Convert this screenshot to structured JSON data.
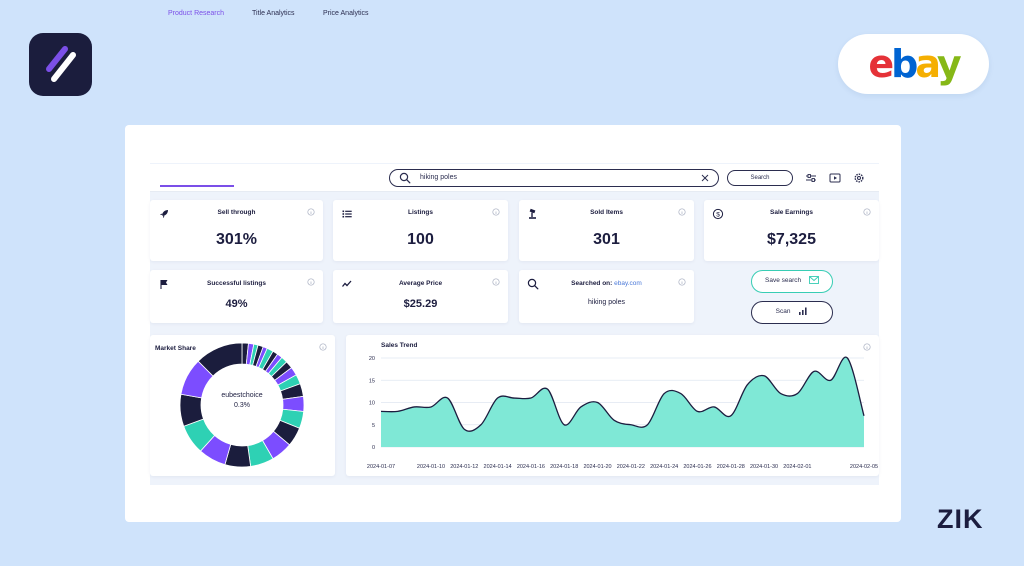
{
  "brand": {
    "marketplace_logo": "ebay",
    "company_mark": "ZIK"
  },
  "tabs": [
    {
      "label": "Product Research",
      "active": true
    },
    {
      "label": "Title Analytics",
      "active": false
    },
    {
      "label": "Price Analytics",
      "active": false
    }
  ],
  "search": {
    "value": "hiking poles",
    "button_label": "Search"
  },
  "toolbar_icons": [
    "sliders-icon",
    "play-icon",
    "gear-icon"
  ],
  "stats": {
    "sell_through": {
      "label": "Sell through",
      "value": "301%",
      "icon": "rocket-icon"
    },
    "listings": {
      "label": "Listings",
      "value": "100",
      "icon": "list-icon"
    },
    "sold_items": {
      "label": "Sold Items",
      "value": "301",
      "icon": "gavel-icon"
    },
    "sale_earnings": {
      "label": "Sale Earnings",
      "value": "$7,325",
      "icon": "dollar-coin-icon"
    },
    "successful_listings": {
      "label": "Successful listings",
      "value": "49%",
      "icon": "flag-icon"
    },
    "average_price": {
      "label": "Average Price",
      "value": "$25.29",
      "icon": "trend-line-icon"
    },
    "searched_on": {
      "label": "Searched on:",
      "site": "ebay.com",
      "value": "hiking poles",
      "icon": "search-icon"
    }
  },
  "actions": {
    "save_search": "Save search",
    "scan": "Scan"
  },
  "market_share": {
    "title": "Market Share",
    "center_name": "eubestchoice",
    "center_value": "0.3%",
    "colors": [
      "#1b1d3d",
      "#7c4dff",
      "#2ed1b4"
    ]
  },
  "sales_trend": {
    "title": "Sales Trend"
  },
  "chart_data": {
    "type": "area",
    "title": "Sales Trend",
    "ylim": [
      0,
      20
    ],
    "yticks": [
      0,
      5,
      10,
      15,
      20
    ],
    "grid": true,
    "x_tick_labels": [
      "2024-01-07",
      "2024-01-10",
      "2024-01-12",
      "2024-01-14",
      "2024-01-16",
      "2024-01-18",
      "2024-01-20",
      "2024-01-22",
      "2024-01-24",
      "2024-01-26",
      "2024-01-28",
      "2024-01-30",
      "2024-02-01",
      "2024-02-05"
    ],
    "x": [
      "2024-01-07",
      "2024-01-08",
      "2024-01-09",
      "2024-01-10",
      "2024-01-11",
      "2024-01-12",
      "2024-01-13",
      "2024-01-14",
      "2024-01-15",
      "2024-01-16",
      "2024-01-17",
      "2024-01-18",
      "2024-01-19",
      "2024-01-20",
      "2024-01-21",
      "2024-01-22",
      "2024-01-23",
      "2024-01-24",
      "2024-01-25",
      "2024-01-26",
      "2024-01-27",
      "2024-01-28",
      "2024-01-29",
      "2024-01-30",
      "2024-01-31",
      "2024-02-01",
      "2024-02-02",
      "2024-02-03",
      "2024-02-04",
      "2024-02-05"
    ],
    "values": [
      8,
      8,
      9,
      9,
      11,
      4,
      5,
      11,
      11,
      11,
      13,
      5,
      9,
      10,
      6,
      5,
      5,
      12,
      12,
      8,
      9,
      7,
      14,
      16,
      12,
      12,
      17,
      15,
      20,
      7
    ],
    "fill_color": "#7fe8d6",
    "line_color": "#1c1d3f"
  }
}
